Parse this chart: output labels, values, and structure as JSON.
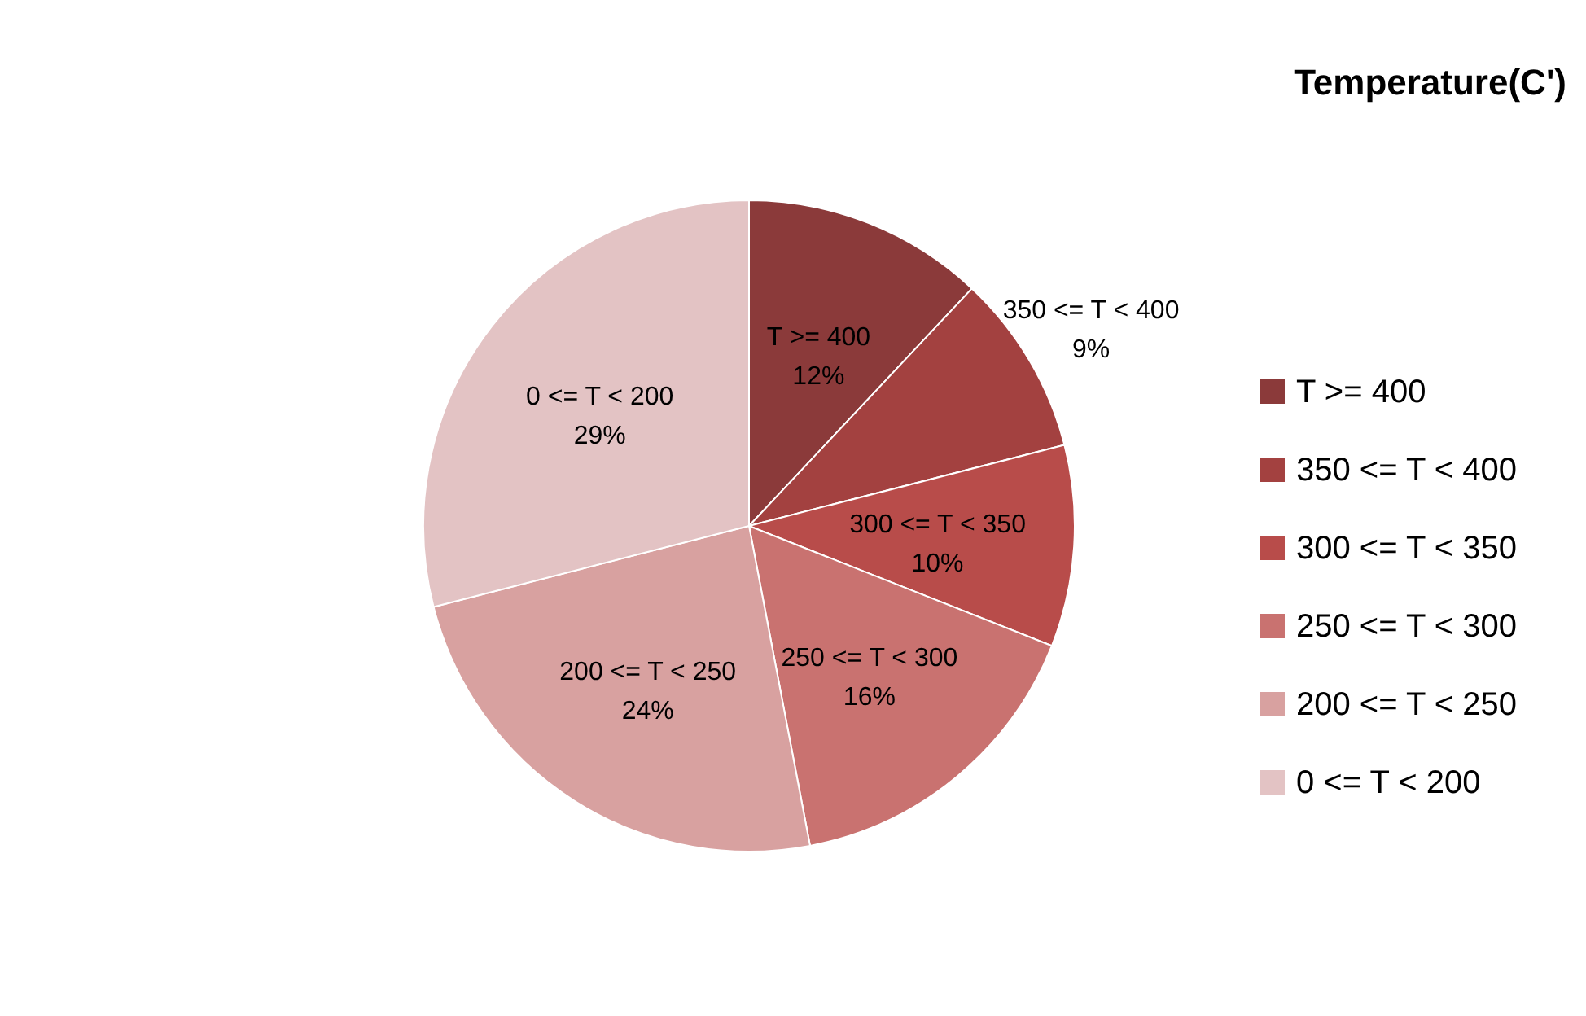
{
  "chart_data": {
    "type": "pie",
    "title": "Temperature(C')",
    "categories": [
      "T >= 400",
      "350 <= T < 400",
      "300 <= T < 350",
      "250 <= T < 300",
      "200 <= T < 250",
      "0 <= T < 200"
    ],
    "values": [
      12,
      9,
      10,
      16,
      24,
      29
    ],
    "colors": [
      "#8b3a3a",
      "#a34140",
      "#b84c4a",
      "#c97270",
      "#d8a1a0",
      "#e3c3c4"
    ],
    "value_labels": [
      "12%",
      "9%",
      "10%",
      "16%",
      "24%",
      "29%"
    ],
    "legend": "right"
  }
}
